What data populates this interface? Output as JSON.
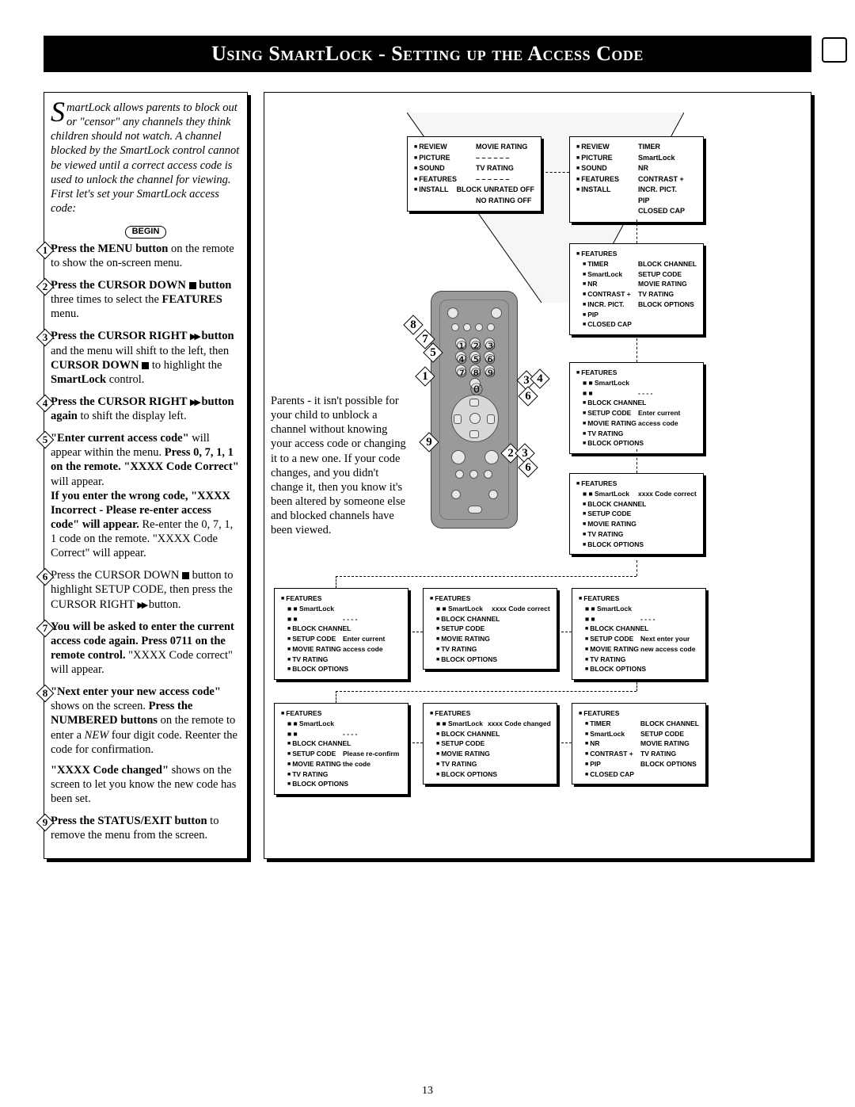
{
  "title": "Using SmartLock - Setting up the Access Code",
  "intro_first_letter": "S",
  "intro_rest": "martLock allows parents to block out or \"censor\" any channels they think children should not watch. A channel blocked by the SmartLock control cannot be viewed until a correct access code is used to unlock the channel for viewing. First let's set your SmartLock access code:",
  "begin": "BEGIN",
  "steps": {
    "s1a": "Press the MENU button",
    "s1b": " on the remote to show the on-screen menu.",
    "s2a": "Press the CURSOR DOWN ",
    "s2b": " button",
    "s2c": " three times to select the ",
    "s2d": "FEATURES",
    "s2e": " menu.",
    "s3a": "Press the CURSOR RIGHT ",
    "s3b": " button",
    "s3c": " and the menu will shift to the left, then ",
    "s3d": "CURSOR DOWN ",
    "s3e": " to highlight the ",
    "s3f": "SmartLock",
    "s3g": " control.",
    "s4a": "Press the CURSOR RIGHT ",
    "s4b": " button again",
    "s4c": " to shift the display left.",
    "s5a": "\"Enter current access code\"",
    "s5b": " will appear within the menu. ",
    "s5c": "Press 0, 7, 1, 1 on the remote. \"XXXX Code Correct\"",
    "s5d": " will appear.",
    "s5e": "If you enter the wrong code, \"XXXX Incorrect - Please re-enter access code\" will appear.",
    "s5f": " Re-enter the 0, 7, 1, 1 code on the remote. \"XXXX Code Correct\" will appear.",
    "s6a": "Press the CURSOR DOWN ",
    "s6b": " button to highlight SETUP CODE, then press the CURSOR RIGHT ",
    "s6c": " button.",
    "s7a": "You will be asked to enter the current access code again. Press 0711 on the remote control.",
    "s7b": " \"XXXX Code correct\" will appear.",
    "s8a": "\"Next enter your new access code\"",
    "s8b": " shows on the screen. ",
    "s8c": "Press the NUMBERED buttons",
    "s8d": " on the remote to enter a ",
    "s8e": "NEW",
    "s8f": " four digit code. Reenter the code for confirmation.",
    "s8g": "\"XXXX Code changed\"",
    "s8h": " shows on the screen to let you know the new code has been set.",
    "s9a": "Press the STATUS/EXIT button",
    "s9b": " to remove the menu from the screen."
  },
  "note": "Parents - it isn't possible for your child to unblock a channel without knowing your access code or changing it to a new one. If your code changes, and you didn't change it, then you know it's been altered by someone else and blocked channels have been viewed.",
  "menu_top1": {
    "rows": [
      [
        "REVIEW",
        "MOVIE RATING"
      ],
      [
        "PICTURE",
        "– – – – – –"
      ],
      [
        "SOUND",
        "TV RATING"
      ],
      [
        "FEATURES",
        "– – – – – –"
      ],
      [
        "INSTALL",
        "BLOCK UNRATED  OFF"
      ],
      [
        "",
        "NO RATING        OFF"
      ]
    ]
  },
  "menu_top2": {
    "rows": [
      [
        "REVIEW",
        "TIMER"
      ],
      [
        "PICTURE",
        "SmartLock"
      ],
      [
        "SOUND",
        "NR"
      ],
      [
        "FEATURES",
        "CONTRAST +"
      ],
      [
        "INSTALL",
        "INCR. PICT."
      ],
      [
        "",
        "PIP"
      ],
      [
        "",
        "CLOSED CAP"
      ]
    ]
  },
  "menu_feat1": {
    "header": "FEATURES",
    "rows": [
      [
        "TIMER",
        "BLOCK CHANNEL"
      ],
      [
        "SmartLock",
        "SETUP CODE"
      ],
      [
        "NR",
        "MOVIE RATING"
      ],
      [
        "CONTRAST +",
        "TV RATING"
      ],
      [
        "INCR. PICT.",
        "BLOCK OPTIONS"
      ],
      [
        "PIP",
        ""
      ],
      [
        "CLOSED CAP",
        ""
      ]
    ]
  },
  "menu_feat2": {
    "header": "FEATURES",
    "sub": "SmartLock",
    "rows": [
      [
        "BLOCK CHANNEL",
        ""
      ],
      [
        "SETUP CODE",
        "Enter current"
      ],
      [
        "MOVIE RATING",
        "access code"
      ],
      [
        "TV RATING",
        ""
      ],
      [
        "BLOCK OPTIONS",
        ""
      ]
    ]
  },
  "menu_feat3": {
    "header": "FEATURES",
    "sub": "SmartLock",
    "tag": "xxxx Code correct",
    "rows": [
      "BLOCK CHANNEL",
      "SETUP CODE",
      "MOVIE RATING",
      "TV RATING",
      "BLOCK OPTIONS"
    ]
  },
  "menu_row3a": {
    "header": "FEATURES",
    "sub": "SmartLock",
    "rows": [
      [
        "BLOCK CHANNEL",
        ""
      ],
      [
        "SETUP CODE",
        "Enter current"
      ],
      [
        "MOVIE RATING",
        "access code"
      ],
      [
        "TV RATING",
        ""
      ],
      [
        "BLOCK OPTIONS",
        ""
      ]
    ]
  },
  "menu_row3b": {
    "header": "FEATURES",
    "sub": "SmartLock",
    "tag": "xxxx Code correct",
    "rows": [
      "BLOCK CHANNEL",
      "SETUP CODE",
      "MOVIE RATING",
      "TV RATING",
      "BLOCK OPTIONS"
    ]
  },
  "menu_row3c": {
    "header": "FEATURES",
    "sub": "SmartLock",
    "rows": [
      [
        "BLOCK CHANNEL",
        ""
      ],
      [
        "SETUP CODE",
        "Next enter your"
      ],
      [
        "MOVIE RATING",
        "new access code"
      ],
      [
        "TV RATING",
        ""
      ],
      [
        "BLOCK OPTIONS",
        ""
      ]
    ]
  },
  "menu_row4a": {
    "header": "FEATURES",
    "sub": "SmartLock",
    "rows": [
      [
        "BLOCK CHANNEL",
        ""
      ],
      [
        "SETUP CODE",
        "Please re-confirm"
      ],
      [
        "MOVIE RATING",
        "the code"
      ],
      [
        "TV RATING",
        ""
      ],
      [
        "BLOCK OPTIONS",
        ""
      ]
    ]
  },
  "menu_row4b": {
    "header": "FEATURES",
    "sub": "SmartLock",
    "tag": "xxxx Code changed",
    "rows": [
      "BLOCK CHANNEL",
      "SETUP CODE",
      "MOVIE RATING",
      "TV RATING",
      "BLOCK OPTIONS"
    ]
  },
  "menu_row4c": {
    "header": "FEATURES",
    "rows": [
      [
        "TIMER",
        "BLOCK CHANNEL"
      ],
      [
        "SmartLock",
        "SETUP CODE"
      ],
      [
        "NR",
        "MOVIE RATING"
      ],
      [
        "CONTRAST +",
        "TV RATING"
      ],
      [
        "PIP",
        "BLOCK OPTIONS"
      ],
      [
        "CLOSED CAP",
        ""
      ]
    ]
  },
  "page": "13"
}
